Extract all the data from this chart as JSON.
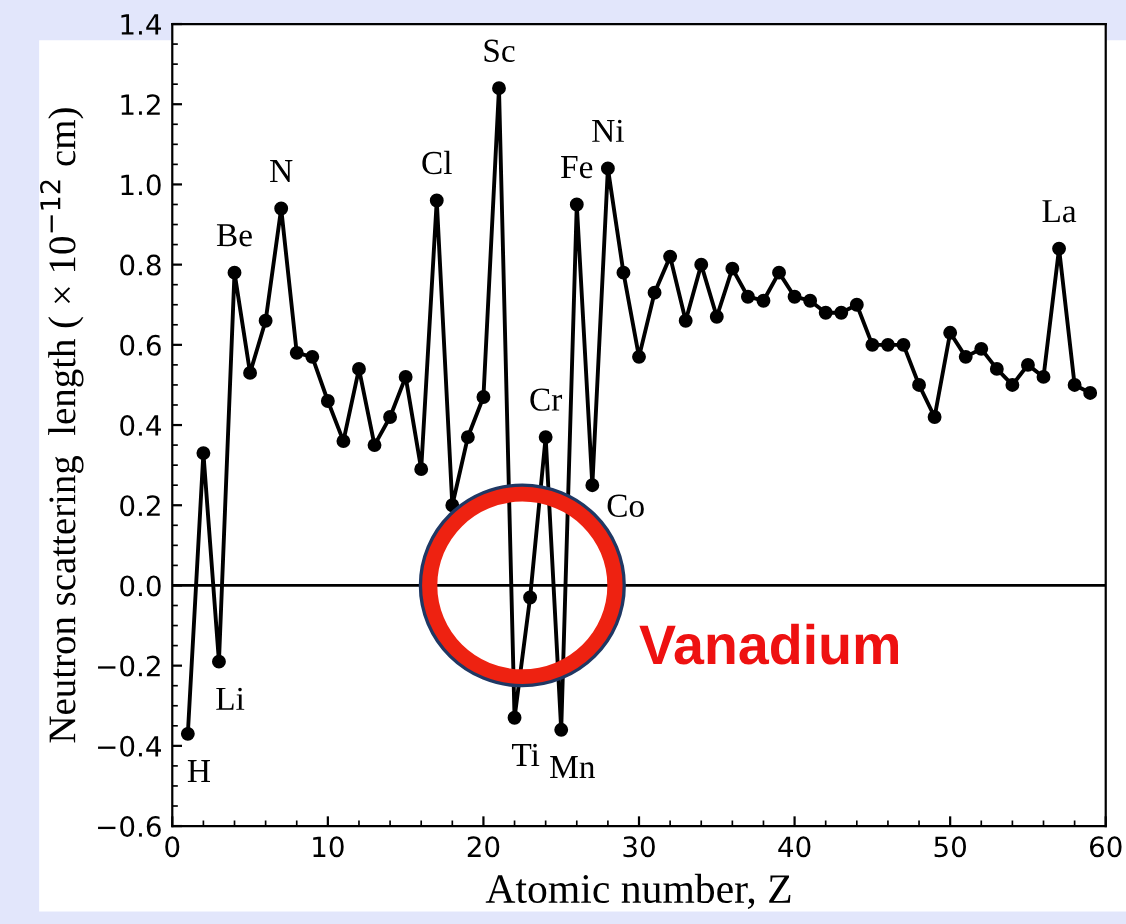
{
  "chart_data": {
    "type": "line",
    "xlabel": "Atomic number, Z",
    "ylabel": "Neutron scattering  length ( × 10$^{−12}$ cm)",
    "x": [
      1,
      2,
      3,
      4,
      5,
      6,
      7,
      8,
      9,
      10,
      11,
      12,
      13,
      14,
      15,
      16,
      17,
      18,
      19,
      20,
      21,
      22,
      23,
      24,
      25,
      26,
      27,
      28,
      29,
      30,
      31,
      32,
      33,
      34,
      35,
      36,
      37,
      38,
      39,
      40,
      41,
      42,
      43,
      44,
      45,
      46,
      47,
      48,
      49,
      50,
      51,
      52,
      53,
      54,
      55,
      56,
      57,
      58,
      59
    ],
    "series": [
      {
        "color": "#000000",
        "values": [
          -0.37,
          0.33,
          -0.19,
          0.78,
          0.53,
          0.66,
          0.94,
          0.58,
          0.57,
          0.46,
          0.36,
          0.54,
          0.35,
          0.42,
          0.52,
          0.29,
          0.96,
          0.2,
          0.37,
          0.47,
          1.24,
          -0.33,
          -0.03,
          0.37,
          -0.36,
          0.95,
          0.25,
          1.04,
          0.78,
          0.57,
          0.73,
          0.82,
          0.66,
          0.8,
          0.67,
          0.79,
          0.72,
          0.71,
          0.78,
          0.72,
          0.71,
          0.68,
          0.68,
          0.7,
          0.6,
          0.6,
          0.6,
          0.5,
          0.42,
          0.63,
          0.57,
          0.59,
          0.54,
          0.5,
          0.55,
          0.52,
          0.84,
          0.5,
          0.48
        ]
      }
    ],
    "marker": "circle",
    "line_style": "solid",
    "grid": false,
    "legend": false,
    "xlim": [
      0,
      60
    ],
    "xticks": [
      0,
      10,
      20,
      30,
      40,
      50,
      60
    ],
    "ylim": [
      -0.6,
      1.4
    ],
    "yticks": [
      {
        "value": -0.6,
        "label": "−0.6"
      },
      {
        "value": -0.4,
        "label": "−0.4"
      },
      {
        "value": -0.2,
        "label": "−0.2"
      },
      {
        "value": 0,
        "label": "0.0"
      },
      0.2,
      0.4,
      0.6,
      0.8,
      {
        "value": 1.0,
        "label": "1.0"
      },
      1.2,
      1.4
    ],
    "ref_lines": [
      {
        "axis": "y",
        "value": 0,
        "color": "#000000"
      }
    ],
    "annotations": [
      {
        "text": "H",
        "x": 1,
        "y": -0.37
      },
      {
        "text": "Li",
        "x": 3,
        "y": -0.19
      },
      {
        "text": "Be",
        "x": 4,
        "y": 0.78
      },
      {
        "text": "N",
        "x": 7,
        "y": 0.94
      },
      {
        "text": "Cl",
        "x": 17,
        "y": 0.96
      },
      {
        "text": "Sc",
        "x": 21,
        "y": 1.24
      },
      {
        "text": "Ti",
        "x": 22,
        "y": -0.33
      },
      {
        "text": "Cr",
        "x": 24,
        "y": 0.37
      },
      {
        "text": "Mn",
        "x": 25,
        "y": -0.36
      },
      {
        "text": "Fe",
        "x": 26,
        "y": 0.95
      },
      {
        "text": "Co",
        "x": 27,
        "y": 0.25
      },
      {
        "text": "Ni",
        "x": 28,
        "y": 1.04
      },
      {
        "text": "La",
        "x": 57,
        "y": 0.84
      },
      "Vanadium"
    ]
  }
}
